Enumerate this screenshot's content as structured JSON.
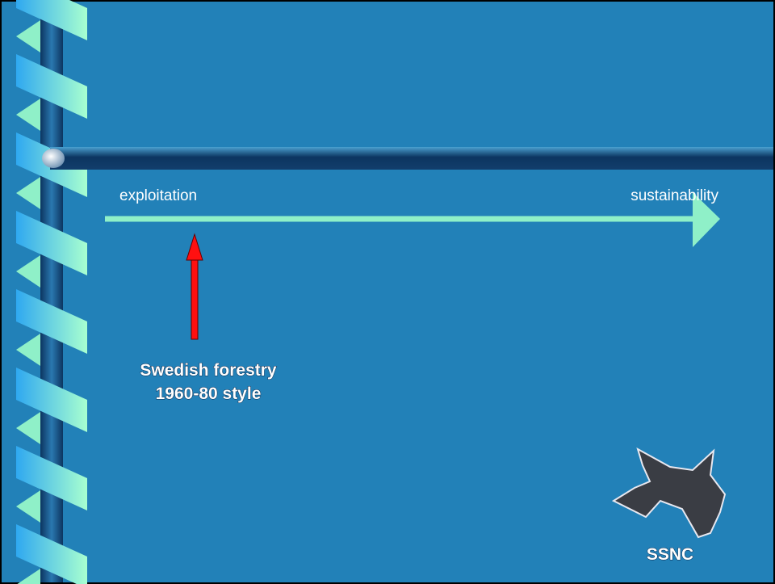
{
  "slide": {
    "scale_left": "exploitation",
    "scale_right": "sustainability",
    "marker_label": [
      "Swedish forestry",
      "1960-80 style"
    ],
    "logo_text": "SSNC"
  }
}
